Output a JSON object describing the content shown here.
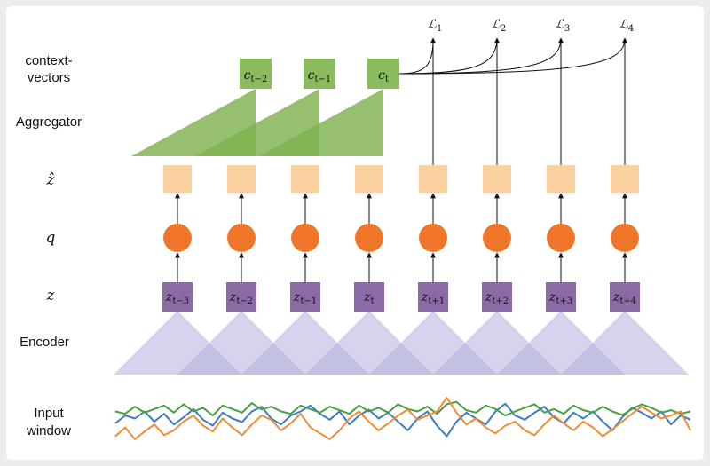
{
  "row_labels": {
    "context_vectors_line1": "context-",
    "context_vectors_line2": "vectors",
    "aggregator": "Aggregator",
    "z_hat": "ẑ",
    "q": "q",
    "z": "z",
    "encoder": "Encoder",
    "input_line1": "Input",
    "input_line2": "window"
  },
  "context_vectors": [
    {
      "base": "c",
      "sub": "t−2"
    },
    {
      "base": "c",
      "sub": "t−1"
    },
    {
      "base": "c",
      "sub": "t"
    }
  ],
  "latents": [
    {
      "base": "z",
      "sub": "t−3"
    },
    {
      "base": "z",
      "sub": "t−2"
    },
    {
      "base": "z",
      "sub": "t−1"
    },
    {
      "base": "z",
      "sub": "t"
    },
    {
      "base": "z",
      "sub": "t+1"
    },
    {
      "base": "z",
      "sub": "t+2"
    },
    {
      "base": "z",
      "sub": "t+3"
    },
    {
      "base": "z",
      "sub": "t+4"
    }
  ],
  "losses": [
    {
      "base": "ℒ",
      "sub": "1"
    },
    {
      "base": "ℒ",
      "sub": "2"
    },
    {
      "base": "ℒ",
      "sub": "3"
    },
    {
      "base": "ℒ",
      "sub": "4"
    }
  ],
  "colors": {
    "context": "#8cbb5f",
    "aggregator": "#7fb24f",
    "z_hat": "#fbd1a2",
    "q": "#f0772a",
    "z": "#8a6ba6",
    "encoder": "#b3b0dc",
    "signal_blue": "#3e7cc0",
    "signal_green": "#4aa040",
    "signal_orange": "#f08c35"
  },
  "input_signals": [
    {
      "color_key": "signal_blue",
      "values": [
        0.42,
        0.55,
        0.5,
        0.62,
        0.45,
        0.58,
        0.4,
        0.52,
        0.66,
        0.48,
        0.38,
        0.6,
        0.5,
        0.44,
        0.62,
        0.7,
        0.5,
        0.4,
        0.55,
        0.62,
        0.72,
        0.58,
        0.48,
        0.62,
        0.4,
        0.55,
        0.65,
        0.5,
        0.6,
        0.45,
        0.3,
        0.5,
        0.62,
        0.38,
        0.2,
        0.45,
        0.6,
        0.5,
        0.4,
        0.62,
        0.75,
        0.55,
        0.48,
        0.6,
        0.7,
        0.52,
        0.42,
        0.6,
        0.5,
        0.62,
        0.45,
        0.3,
        0.52,
        0.68,
        0.6,
        0.5,
        0.62,
        0.4,
        0.55,
        0.48
      ]
    },
    {
      "color_key": "signal_green",
      "values": [
        0.62,
        0.58,
        0.7,
        0.6,
        0.66,
        0.72,
        0.6,
        0.74,
        0.62,
        0.68,
        0.55,
        0.72,
        0.66,
        0.6,
        0.76,
        0.65,
        0.7,
        0.62,
        0.58,
        0.72,
        0.66,
        0.6,
        0.7,
        0.64,
        0.58,
        0.72,
        0.62,
        0.68,
        0.6,
        0.74,
        0.66,
        0.62,
        0.7,
        0.58,
        0.74,
        0.78,
        0.64,
        0.6,
        0.72,
        0.66,
        0.55,
        0.62,
        0.68,
        0.74,
        0.6,
        0.66,
        0.58,
        0.72,
        0.64,
        0.6,
        0.7,
        0.62,
        0.56,
        0.66,
        0.74,
        0.68,
        0.6,
        0.64,
        0.58,
        0.62
      ]
    },
    {
      "color_key": "signal_orange",
      "values": [
        0.2,
        0.35,
        0.15,
        0.28,
        0.4,
        0.22,
        0.3,
        0.45,
        0.55,
        0.38,
        0.28,
        0.5,
        0.35,
        0.22,
        0.4,
        0.55,
        0.48,
        0.3,
        0.42,
        0.58,
        0.35,
        0.25,
        0.15,
        0.3,
        0.5,
        0.62,
        0.45,
        0.3,
        0.42,
        0.55,
        0.65,
        0.48,
        0.55,
        0.62,
        0.85,
        0.6,
        0.4,
        0.5,
        0.35,
        0.25,
        0.38,
        0.45,
        0.3,
        0.22,
        0.4,
        0.55,
        0.42,
        0.3,
        0.45,
        0.35,
        0.2,
        0.32,
        0.45,
        0.58,
        0.7,
        0.6,
        0.5,
        0.55,
        0.62,
        0.3
      ]
    }
  ]
}
